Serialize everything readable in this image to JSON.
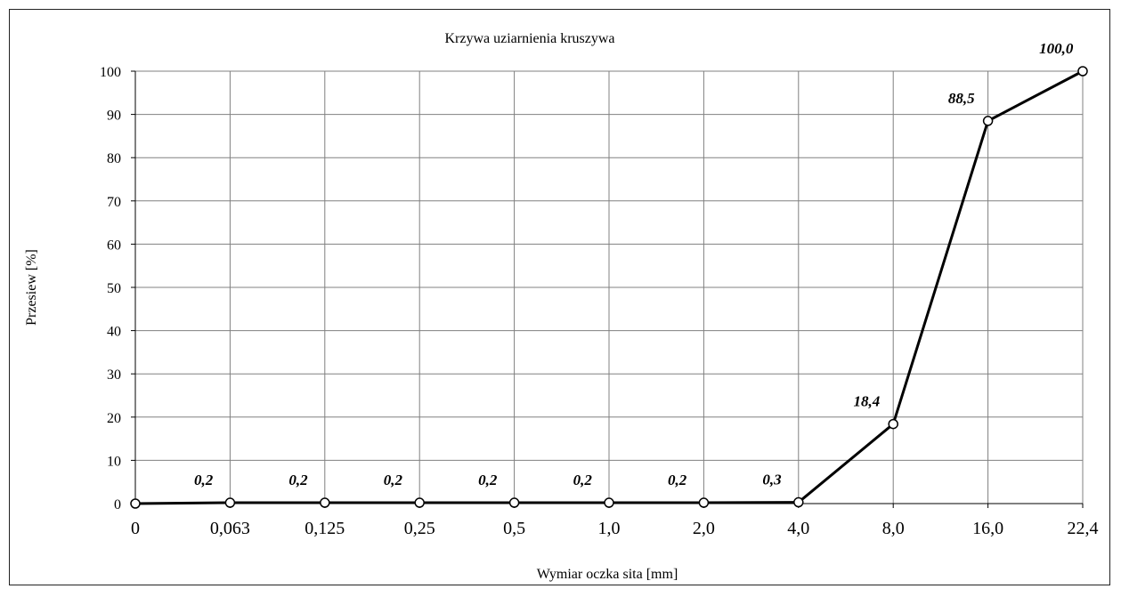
{
  "chart_data": {
    "type": "line",
    "title": "Krzywa uziarnienia kruszywa",
    "xlabel": "Wymiar oczka sita  [mm]",
    "ylabel": "Przesiew [%]",
    "categories": [
      "0",
      "0,063",
      "0,125",
      "0,25",
      "0,5",
      "1,0",
      "2,0",
      "4,0",
      "8,0",
      "16,0",
      "22,4"
    ],
    "series": [
      {
        "values": [
          0.0,
          0.2,
          0.2,
          0.2,
          0.2,
          0.2,
          0.2,
          0.3,
          18.4,
          88.5,
          100.0
        ],
        "labels": [
          "",
          "0,2",
          "0,2",
          "0,2",
          "0,2",
          "0,2",
          "0,2",
          "0,3",
          "18,4",
          "88,5",
          "100,0"
        ]
      }
    ],
    "ylim": [
      0,
      100
    ],
    "yticks": [
      0,
      10,
      20,
      30,
      40,
      50,
      60,
      70,
      80,
      90,
      100
    ],
    "grid": true,
    "legend": "none",
    "colors": {
      "line": "#000000",
      "grid": "#808080",
      "marker_fill": "#ffffff"
    }
  }
}
